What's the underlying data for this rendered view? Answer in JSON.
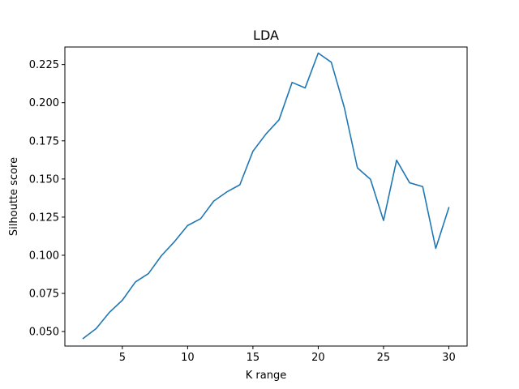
{
  "chart_data": {
    "type": "line",
    "title": "LDA",
    "xlabel": "K range",
    "ylabel": "Silhoutte score",
    "xlim": [
      0.6,
      31.4
    ],
    "ylim": [
      0.0405,
      0.2365
    ],
    "xticks": [
      5,
      10,
      15,
      20,
      25,
      30
    ],
    "xtick_labels": [
      "5",
      "10",
      "15",
      "20",
      "25",
      "30"
    ],
    "yticks": [
      0.05,
      0.075,
      0.1,
      0.125,
      0.15,
      0.175,
      0.2,
      0.225
    ],
    "ytick_labels": [
      "0.050",
      "0.075",
      "0.100",
      "0.125",
      "0.150",
      "0.175",
      "0.200",
      "0.225"
    ],
    "grid": false,
    "legend": "none",
    "series": [
      {
        "color": "#1f77b4",
        "x": [
          2,
          3,
          4,
          5,
          6,
          7,
          8,
          9,
          10,
          11,
          12,
          13,
          14,
          15,
          16,
          17,
          18,
          19,
          20,
          21,
          22,
          23,
          24,
          25,
          26,
          27,
          28,
          29,
          30
        ],
        "y": [
          0.0455,
          0.052,
          0.0625,
          0.0705,
          0.0825,
          0.088,
          0.0998,
          0.109,
          0.1195,
          0.124,
          0.1355,
          0.1415,
          0.1462,
          0.1682,
          0.1795,
          0.1888,
          0.2133,
          0.2097,
          0.2325,
          0.2265,
          0.1968,
          0.1573,
          0.1498,
          0.1228,
          0.1623,
          0.1475,
          0.145,
          0.1045,
          0.1312
        ]
      }
    ]
  }
}
